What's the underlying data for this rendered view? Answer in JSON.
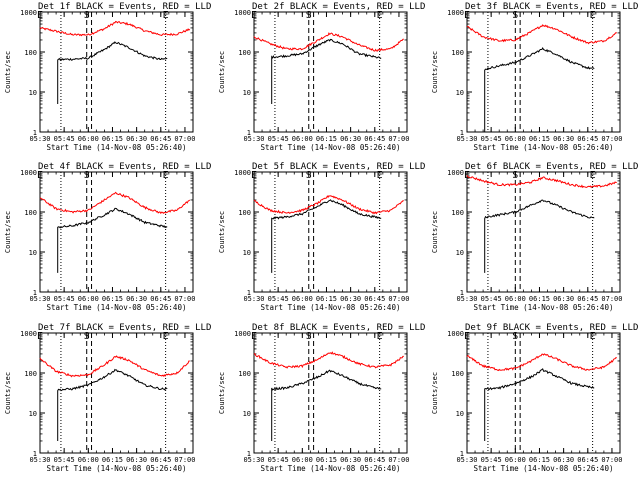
{
  "chart_data": [
    {
      "type": "line",
      "title": "Det 1f BLACK = Events, RED = LLD",
      "xlabel": "Start Time (14-Nov-08 05:26:40)",
      "ylabel": "Counts/sec",
      "yscale": "log",
      "ylim": [
        1,
        1000
      ],
      "ytick_labels": [
        "1",
        "10",
        "100",
        "1000"
      ],
      "xlim": [
        "05:30",
        "07:05"
      ],
      "xtick_labels": [
        "05:30",
        "05:45",
        "06:00",
        "06:15",
        "06:30",
        "06:45",
        "07:00"
      ],
      "markers": [
        {
          "label": "E",
          "time": "05:30",
          "style": "dotted"
        },
        {
          "label": "",
          "time": "05:43",
          "style": "dotted"
        },
        {
          "label": "S",
          "time": "05:59",
          "style": "dashed"
        },
        {
          "label": "",
          "time": "06:02",
          "style": "dashed"
        },
        {
          "label": "E",
          "time": "06:48",
          "style": "dotted"
        }
      ],
      "series": [
        {
          "name": "LLD",
          "color": "#ff0000",
          "x": [
            "05:30",
            "05:40",
            "05:50",
            "06:00",
            "06:10",
            "06:17",
            "06:25",
            "06:35",
            "06:45",
            "06:55",
            "07:03"
          ],
          "y": [
            400,
            330,
            270,
            270,
            380,
            560,
            500,
            340,
            270,
            280,
            370
          ]
        },
        {
          "name": "Events",
          "color": "#000000",
          "x": [
            "05:41",
            "05:41",
            "05:42",
            "05:50",
            "06:00",
            "06:10",
            "06:17",
            "06:25",
            "06:35",
            "06:45",
            "06:49"
          ],
          "y": [
            5,
            65,
            65,
            66,
            70,
            115,
            175,
            130,
            80,
            65,
            68
          ]
        }
      ]
    },
    {
      "type": "line",
      "title": "Det 2f BLACK = Events, RED = LLD",
      "xlabel": "Start Time (14-Nov-08 05:26:40)",
      "ylabel": "Counts/sec",
      "yscale": "log",
      "ylim": [
        1,
        1000
      ],
      "ytick_labels": [
        "1",
        "10",
        "100",
        "1000"
      ],
      "xlim": [
        "05:30",
        "07:05"
      ],
      "xtick_labels": [
        "05:30",
        "05:45",
        "06:00",
        "06:15",
        "06:30",
        "06:45",
        "07:00"
      ],
      "markers": [
        {
          "label": "E",
          "time": "05:30",
          "style": "dotted"
        },
        {
          "label": "",
          "time": "05:43",
          "style": "dotted"
        },
        {
          "label": "S",
          "time": "06:04",
          "style": "dashed"
        },
        {
          "label": "",
          "time": "06:07",
          "style": "dashed"
        },
        {
          "label": "E",
          "time": "06:48",
          "style": "dotted"
        }
      ],
      "series": [
        {
          "name": "LLD",
          "color": "#ff0000",
          "x": [
            "05:30",
            "05:40",
            "05:50",
            "06:00",
            "06:10",
            "06:17",
            "06:25",
            "06:35",
            "06:45",
            "06:55",
            "07:03"
          ],
          "y": [
            240,
            160,
            120,
            120,
            200,
            290,
            240,
            150,
            110,
            120,
            210
          ]
        },
        {
          "name": "Events",
          "color": "#000000",
          "x": [
            "05:41",
            "05:41",
            "05:42",
            "05:50",
            "06:00",
            "06:10",
            "06:17",
            "06:25",
            "06:35",
            "06:45",
            "06:49"
          ],
          "y": [
            5,
            75,
            75,
            80,
            90,
            150,
            200,
            160,
            90,
            75,
            70
          ]
        }
      ]
    },
    {
      "type": "line",
      "title": "Det 3f BLACK = Events, RED = LLD",
      "xlabel": "Start Time (14-Nov-08 05:26:40)",
      "ylabel": "Counts/sec",
      "yscale": "log",
      "ylim": [
        1,
        1000
      ],
      "ytick_labels": [
        "1",
        "10",
        "100",
        "1000"
      ],
      "xlim": [
        "05:30",
        "07:05"
      ],
      "xtick_labels": [
        "05:30",
        "05:45",
        "06:00",
        "06:15",
        "06:30",
        "06:45",
        "07:00"
      ],
      "markers": [
        {
          "label": "E",
          "time": "05:30",
          "style": "dotted"
        },
        {
          "label": "",
          "time": "05:43",
          "style": "dotted"
        },
        {
          "label": "S",
          "time": "06:00",
          "style": "dashed"
        },
        {
          "label": "",
          "time": "06:03",
          "style": "dashed"
        },
        {
          "label": "E",
          "time": "06:48",
          "style": "dotted"
        }
      ],
      "series": [
        {
          "name": "LLD",
          "color": "#ff0000",
          "x": [
            "05:30",
            "05:40",
            "05:50",
            "06:00",
            "06:10",
            "06:17",
            "06:25",
            "06:35",
            "06:45",
            "06:55",
            "07:03"
          ],
          "y": [
            430,
            240,
            190,
            200,
            320,
            470,
            380,
            240,
            170,
            190,
            300
          ]
        },
        {
          "name": "Events",
          "color": "#000000",
          "x": [
            "05:41",
            "05:41",
            "05:42",
            "05:50",
            "06:00",
            "06:10",
            "06:17",
            "06:25",
            "06:35",
            "06:45",
            "06:49"
          ],
          "y": [
            1,
            35,
            38,
            45,
            55,
            85,
            120,
            90,
            55,
            40,
            38
          ]
        }
      ]
    },
    {
      "type": "line",
      "title": "Det 4f BLACK = Events, RED = LLD",
      "xlabel": "Start Time (14-Nov-08 05:26:40)",
      "ylabel": "Counts/sec",
      "yscale": "log",
      "ylim": [
        1,
        1000
      ],
      "ytick_labels": [
        "1",
        "10",
        "100",
        "1000"
      ],
      "xlim": [
        "05:30",
        "07:05"
      ],
      "xtick_labels": [
        "05:30",
        "05:45",
        "06:00",
        "06:15",
        "06:30",
        "06:45",
        "07:00"
      ],
      "markers": [
        {
          "label": "E",
          "time": "05:30",
          "style": "dotted"
        },
        {
          "label": "",
          "time": "05:43",
          "style": "dotted"
        },
        {
          "label": "S",
          "time": "05:59",
          "style": "dashed"
        },
        {
          "label": "",
          "time": "06:02",
          "style": "dashed"
        },
        {
          "label": "E",
          "time": "06:48",
          "style": "dotted"
        }
      ],
      "series": [
        {
          "name": "LLD",
          "color": "#ff0000",
          "x": [
            "05:30",
            "05:40",
            "05:50",
            "06:00",
            "06:10",
            "06:17",
            "06:25",
            "06:35",
            "06:45",
            "06:55",
            "07:03"
          ],
          "y": [
            230,
            120,
            100,
            110,
            200,
            300,
            230,
            130,
            95,
            110,
            200
          ]
        },
        {
          "name": "Events",
          "color": "#000000",
          "x": [
            "05:41",
            "05:41",
            "05:42",
            "05:50",
            "06:00",
            "06:10",
            "06:17",
            "06:25",
            "06:35",
            "06:45",
            "06:49"
          ],
          "y": [
            3,
            40,
            42,
            45,
            55,
            85,
            120,
            90,
            55,
            45,
            42
          ]
        }
      ]
    },
    {
      "type": "line",
      "title": "Det 5f BLACK = Events, RED = LLD",
      "xlabel": "Start Time (14-Nov-08 05:26:40)",
      "ylabel": "Counts/sec",
      "yscale": "log",
      "ylim": [
        1,
        1000
      ],
      "ytick_labels": [
        "1",
        "10",
        "100",
        "1000"
      ],
      "xlim": [
        "05:30",
        "07:05"
      ],
      "xtick_labels": [
        "05:30",
        "05:45",
        "06:00",
        "06:15",
        "06:30",
        "06:45",
        "07:00"
      ],
      "markers": [
        {
          "label": "E",
          "time": "05:30",
          "style": "dotted"
        },
        {
          "label": "",
          "time": "05:43",
          "style": "dotted"
        },
        {
          "label": "S",
          "time": "06:04",
          "style": "dashed"
        },
        {
          "label": "",
          "time": "06:07",
          "style": "dashed"
        },
        {
          "label": "E",
          "time": "06:48",
          "style": "dotted"
        }
      ],
      "series": [
        {
          "name": "LLD",
          "color": "#ff0000",
          "x": [
            "05:30",
            "05:40",
            "05:50",
            "06:00",
            "06:10",
            "06:17",
            "06:25",
            "06:35",
            "06:45",
            "06:55",
            "07:03"
          ],
          "y": [
            190,
            110,
            95,
            110,
            170,
            260,
            200,
            120,
            95,
            110,
            190
          ]
        },
        {
          "name": "Events",
          "color": "#000000",
          "x": [
            "05:41",
            "05:41",
            "05:42",
            "05:50",
            "06:00",
            "06:10",
            "06:17",
            "06:25",
            "06:35",
            "06:45",
            "06:49"
          ],
          "y": [
            3,
            70,
            70,
            75,
            90,
            140,
            200,
            150,
            90,
            75,
            70
          ]
        }
      ]
    },
    {
      "type": "line",
      "title": "Det 6f BLACK = Events, RED = LLD",
      "xlabel": "Start Time (14-Nov-08 05:26:40)",
      "ylabel": "Counts/sec",
      "yscale": "log",
      "ylim": [
        1,
        1000
      ],
      "ytick_labels": [
        "1",
        "10",
        "100",
        "1000"
      ],
      "xlim": [
        "05:30",
        "07:05"
      ],
      "xtick_labels": [
        "05:30",
        "05:45",
        "06:00",
        "06:15",
        "06:30",
        "06:45",
        "07:00"
      ],
      "markers": [
        {
          "label": "E",
          "time": "05:30",
          "style": "dotted"
        },
        {
          "label": "",
          "time": "05:43",
          "style": "dotted"
        },
        {
          "label": "S",
          "time": "06:00",
          "style": "dashed"
        },
        {
          "label": "",
          "time": "06:03",
          "style": "dashed"
        },
        {
          "label": "E",
          "time": "06:48",
          "style": "dotted"
        }
      ],
      "series": [
        {
          "name": "LLD",
          "color": "#ff0000",
          "x": [
            "05:30",
            "05:40",
            "05:50",
            "06:00",
            "06:10",
            "06:17",
            "06:25",
            "06:35",
            "06:45",
            "06:55",
            "07:03"
          ],
          "y": [
            800,
            600,
            480,
            480,
            560,
            720,
            620,
            480,
            420,
            450,
            550
          ]
        },
        {
          "name": "Events",
          "color": "#000000",
          "x": [
            "05:41",
            "05:41",
            "05:42",
            "05:50",
            "06:00",
            "06:10",
            "06:17",
            "06:25",
            "06:35",
            "06:45",
            "06:49"
          ],
          "y": [
            3,
            70,
            75,
            85,
            100,
            150,
            200,
            150,
            100,
            75,
            70
          ]
        }
      ]
    },
    {
      "type": "line",
      "title": "Det 7f BLACK = Events, RED = LLD",
      "xlabel": "Start Time (14-Nov-08 05:26:40)",
      "ylabel": "Counts/sec",
      "yscale": "log",
      "ylim": [
        1,
        1000
      ],
      "ytick_labels": [
        "1",
        "10",
        "100",
        "1000"
      ],
      "xlim": [
        "05:30",
        "07:05"
      ],
      "xtick_labels": [
        "05:30",
        "05:45",
        "06:00",
        "06:15",
        "06:30",
        "06:45",
        "07:00"
      ],
      "markers": [
        {
          "label": "E",
          "time": "05:30",
          "style": "dotted"
        },
        {
          "label": "",
          "time": "05:43",
          "style": "dotted"
        },
        {
          "label": "S",
          "time": "05:59",
          "style": "dashed"
        },
        {
          "label": "",
          "time": "06:02",
          "style": "dashed"
        },
        {
          "label": "E",
          "time": "06:48",
          "style": "dotted"
        }
      ],
      "series": [
        {
          "name": "LLD",
          "color": "#ff0000",
          "x": [
            "05:30",
            "05:40",
            "05:50",
            "06:00",
            "06:10",
            "06:17",
            "06:25",
            "06:35",
            "06:45",
            "06:55",
            "07:03"
          ],
          "y": [
            230,
            110,
            85,
            90,
            160,
            260,
            210,
            120,
            85,
            100,
            200
          ]
        },
        {
          "name": "Events",
          "color": "#000000",
          "x": [
            "05:41",
            "05:41",
            "05:42",
            "05:50",
            "06:00",
            "06:10",
            "06:17",
            "06:25",
            "06:35",
            "06:45",
            "06:49"
          ],
          "y": [
            2,
            38,
            38,
            40,
            50,
            80,
            120,
            85,
            50,
            40,
            40
          ]
        }
      ]
    },
    {
      "type": "line",
      "title": "Det 8f BLACK = Events, RED = LLD",
      "xlabel": "Start Time (14-Nov-08 05:26:40)",
      "ylabel": "Counts/sec",
      "yscale": "log",
      "ylim": [
        1,
        1000
      ],
      "ytick_labels": [
        "1",
        "10",
        "100",
        "1000"
      ],
      "xlim": [
        "05:30",
        "07:05"
      ],
      "xtick_labels": [
        "05:30",
        "05:45",
        "06:00",
        "06:15",
        "06:30",
        "06:45",
        "07:00"
      ],
      "markers": [
        {
          "label": "E",
          "time": "05:30",
          "style": "dotted"
        },
        {
          "label": "",
          "time": "05:43",
          "style": "dotted"
        },
        {
          "label": "S",
          "time": "06:04",
          "style": "dashed"
        },
        {
          "label": "",
          "time": "06:07",
          "style": "dashed"
        },
        {
          "label": "E",
          "time": "06:48",
          "style": "dotted"
        }
      ],
      "series": [
        {
          "name": "LLD",
          "color": "#ff0000",
          "x": [
            "05:30",
            "05:40",
            "05:50",
            "06:00",
            "06:10",
            "06:17",
            "06:25",
            "06:35",
            "06:45",
            "06:55",
            "07:03"
          ],
          "y": [
            300,
            180,
            140,
            150,
            220,
            330,
            260,
            170,
            140,
            160,
            260
          ]
        },
        {
          "name": "Events",
          "color": "#000000",
          "x": [
            "05:41",
            "05:41",
            "05:42",
            "05:50",
            "06:00",
            "06:10",
            "06:17",
            "06:25",
            "06:35",
            "06:45",
            "06:49"
          ],
          "y": [
            2,
            40,
            40,
            42,
            55,
            80,
            115,
            85,
            55,
            42,
            40
          ]
        }
      ]
    },
    {
      "type": "line",
      "title": "Det 9f BLACK = Events, RED = LLD",
      "xlabel": "Start Time (14-Nov-08 05:26:40)",
      "ylabel": "Counts/sec",
      "yscale": "log",
      "ylim": [
        1,
        1000
      ],
      "ytick_labels": [
        "1",
        "10",
        "100",
        "1000"
      ],
      "xlim": [
        "05:30",
        "07:05"
      ],
      "xtick_labels": [
        "05:30",
        "05:45",
        "06:00",
        "06:15",
        "06:30",
        "06:45",
        "07:00"
      ],
      "markers": [
        {
          "label": "E",
          "time": "05:30",
          "style": "dotted"
        },
        {
          "label": "",
          "time": "05:43",
          "style": "dotted"
        },
        {
          "label": "S",
          "time": "06:00",
          "style": "dashed"
        },
        {
          "label": "",
          "time": "06:03",
          "style": "dashed"
        },
        {
          "label": "E",
          "time": "06:48",
          "style": "dotted"
        }
      ],
      "series": [
        {
          "name": "LLD",
          "color": "#ff0000",
          "x": [
            "05:30",
            "05:40",
            "05:50",
            "06:00",
            "06:10",
            "06:17",
            "06:25",
            "06:35",
            "06:45",
            "06:55",
            "07:03"
          ],
          "y": [
            270,
            150,
            120,
            130,
            200,
            300,
            230,
            150,
            120,
            140,
            240
          ]
        },
        {
          "name": "Events",
          "color": "#000000",
          "x": [
            "05:41",
            "05:41",
            "05:42",
            "05:50",
            "06:00",
            "06:10",
            "06:17",
            "06:25",
            "06:35",
            "06:45",
            "06:49"
          ],
          "y": [
            2,
            40,
            40,
            42,
            55,
            80,
            120,
            85,
            55,
            45,
            42
          ]
        }
      ]
    }
  ]
}
